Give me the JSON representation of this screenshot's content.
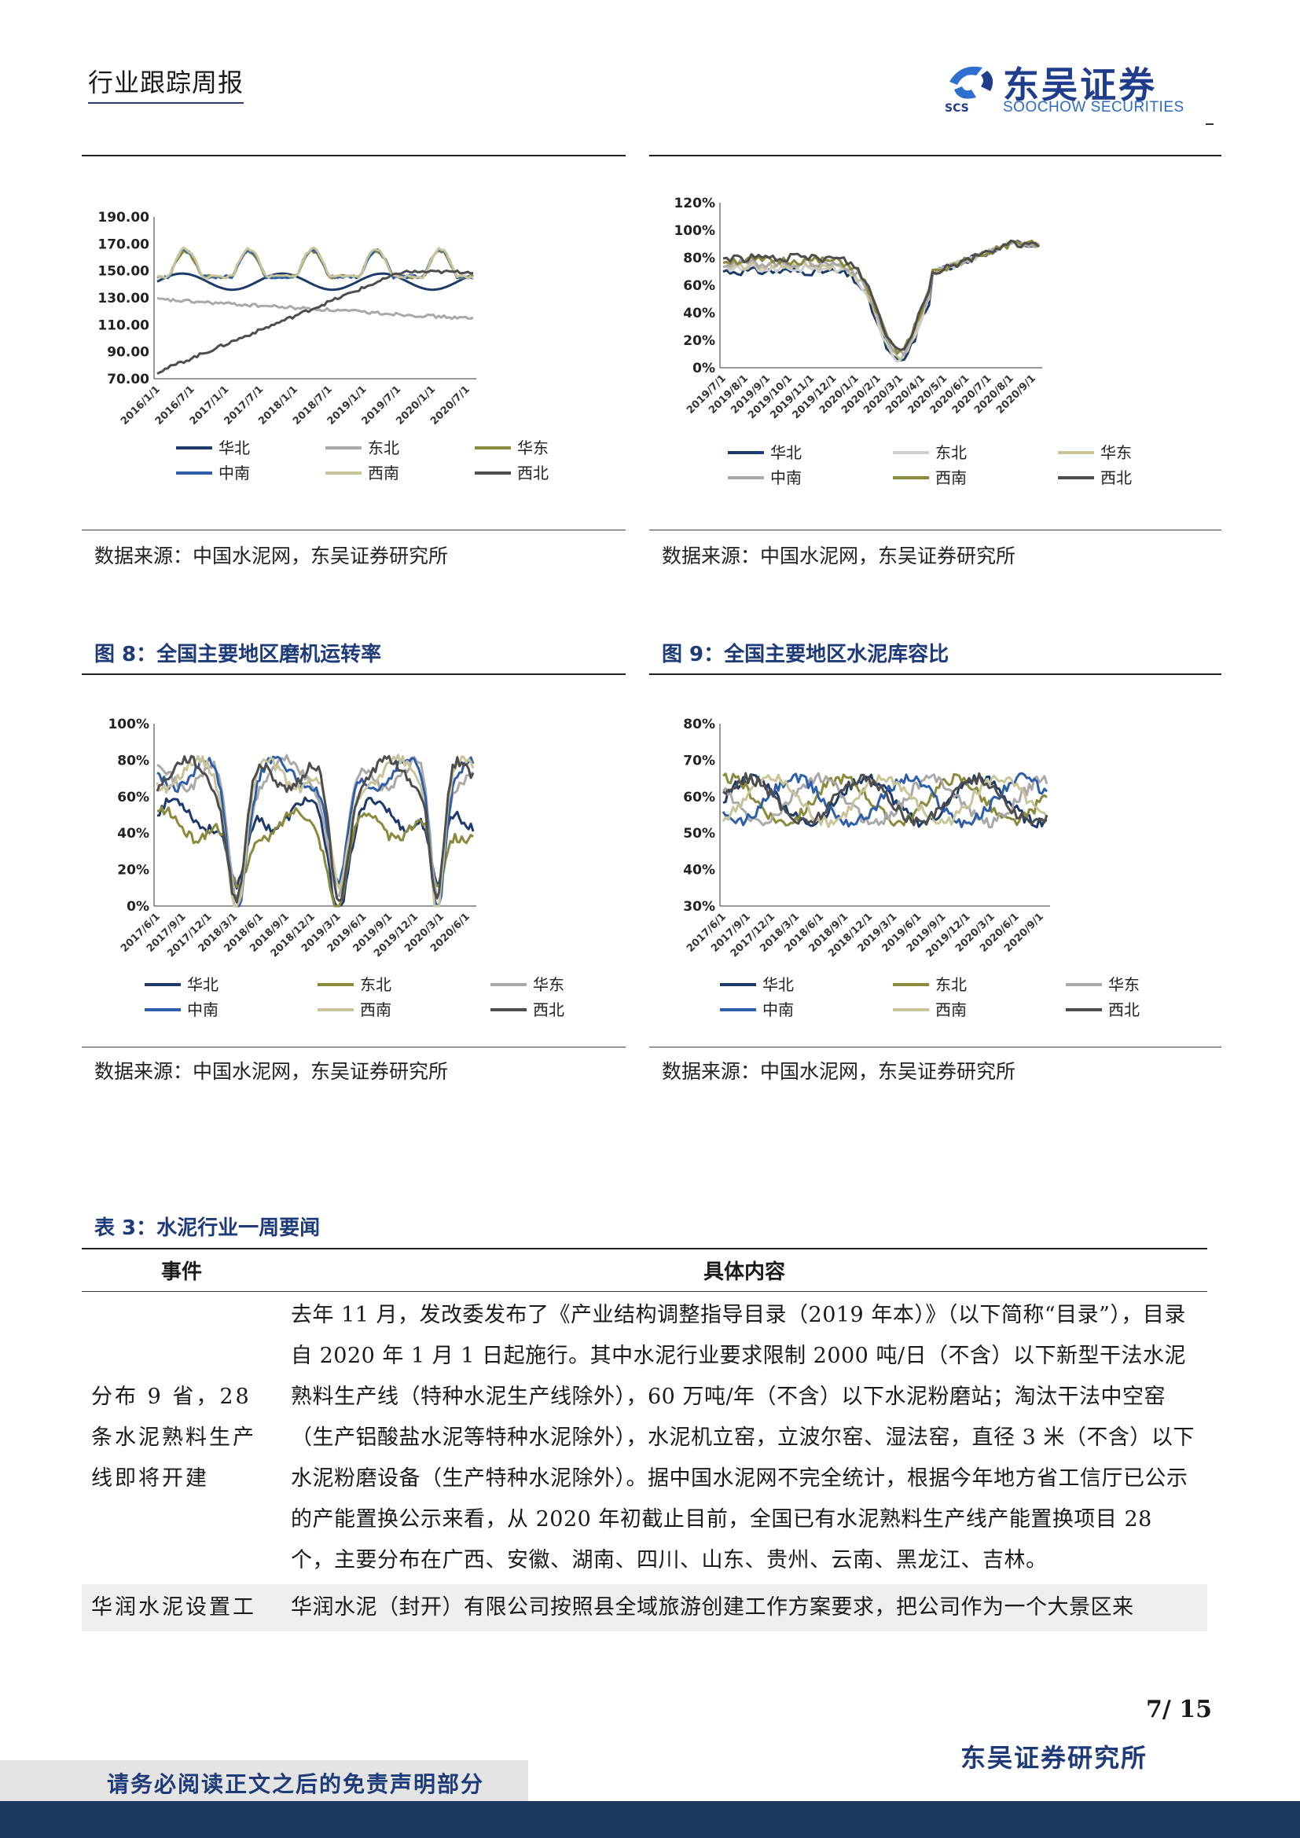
{
  "header": {
    "report_type": "行业跟踪周报",
    "brand_cn": "东吴证券",
    "brand_en": "SOOCHOW SECURITIES",
    "brand_mark": "SCS"
  },
  "charts_top": {
    "left": {
      "source": "数据来源：中国水泥网，东吴证券研究所",
      "y_ticks": [
        "190.00",
        "170.00",
        "150.00",
        "130.00",
        "110.00",
        "90.00",
        "70.00"
      ],
      "x_ticks": [
        "2016/1/1",
        "2016/7/1",
        "2017/1/1",
        "2017/7/1",
        "2018/1/1",
        "2018/7/1",
        "2019/1/1",
        "2019/7/1",
        "2020/1/1",
        "2020/7/1"
      ],
      "legend": [
        "华北",
        "东北",
        "华东",
        "中南",
        "西南",
        "西北"
      ]
    },
    "right": {
      "source": "数据来源：中国水泥网，东吴证券研究所",
      "y_ticks": [
        "120%",
        "100%",
        "80%",
        "60%",
        "40%",
        "20%",
        "0%"
      ],
      "x_ticks": [
        "2019/7/1",
        "2019/8/1",
        "2019/9/1",
        "2019/10/1",
        "2019/11/1",
        "2019/12/1",
        "2020/1/1",
        "2020/2/1",
        "2020/3/1",
        "2020/4/1",
        "2020/5/1",
        "2020/6/1",
        "2020/7/1",
        "2020/8/1",
        "2020/9/1"
      ],
      "legend": [
        "华北",
        "东北",
        "华东",
        "中南",
        "西南",
        "西北"
      ]
    }
  },
  "fig8": {
    "title": "图 8：全国主要地区磨机运转率",
    "source": "数据来源：中国水泥网，东吴证券研究所",
    "y_ticks": [
      "100%",
      "80%",
      "60%",
      "40%",
      "20%",
      "0%"
    ],
    "x_ticks": [
      "2017/6/1",
      "2017/9/1",
      "2017/12/1",
      "2018/3/1",
      "2018/6/1",
      "2018/9/1",
      "2018/12/1",
      "2019/3/1",
      "2019/6/1",
      "2019/9/1",
      "2019/12/1",
      "2020/3/1",
      "2020/6/1"
    ],
    "legend": [
      "华北",
      "东北",
      "华东",
      "中南",
      "西南",
      "西北"
    ]
  },
  "fig9": {
    "title": "图 9：全国主要地区水泥库容比",
    "source": "数据来源：中国水泥网，东吴证券研究所",
    "y_ticks": [
      "80%",
      "70%",
      "60%",
      "50%",
      "40%",
      "30%"
    ],
    "x_ticks": [
      "2017/6/1",
      "2017/9/1",
      "2017/12/1",
      "2018/3/1",
      "2018/6/1",
      "2018/9/1",
      "2018/12/1",
      "2019/3/1",
      "2019/6/1",
      "2019/9/1",
      "2019/12/1",
      "2020/3/1",
      "2020/6/1",
      "2020/9/1"
    ],
    "legend": [
      "华北",
      "东北",
      "华东",
      "中南",
      "西南",
      "西北"
    ]
  },
  "series_colors": {
    "华北": "#1d3a6b",
    "东北": "#a9a9a9",
    "华东": "#8a8a3c",
    "中南": "#2e5ea8",
    "西南": "#c9c59a",
    "西北": "#4d4d4d",
    "fig8_华北": "#1d3a6b",
    "fig8_东北": "#8a8a3c",
    "fig8_华东": "#a9a9a9",
    "fig8_中南": "#2e5ea8",
    "fig8_西南": "#c9c59a",
    "fig8_西北": "#4d4d4d"
  },
  "table": {
    "title": "表 3：水泥行业一周要闻",
    "col_event": "事件",
    "col_content": "具体内容",
    "rows": [
      {
        "event": "分布 9 省，28 条水泥熟料生产线即将开建",
        "content": "去年 11 月，发改委发布了《产业结构调整指导目录（2019 年本）》（以下简称“目录”），目录自 2020 年 1 月 1 日起施行。其中水泥行业要求限制 2000 吨/日（不含）以下新型干法水泥熟料生产线（特种水泥生产线除外），60 万吨/年（不含）以下水泥粉磨站；淘汰干法中空窑（生产铝酸盐水泥等特种水泥除外），水泥机立窑，立波尔窑、湿法窑，直径 3 米（不含）以下水泥粉磨设备（生产特种水泥除外）。据中国水泥网不完全统计，根据今年地方省工信厅已公示的产能置换公示来看，从 2020 年初截止目前，全国已有水泥熟料生产线产能置换项目 28 个，主要分布在广西、安徽、湖南、四川、山东、贵州、云南、黑龙江、吉林。"
      },
      {
        "event": "华润水泥设置工",
        "content": "华润水泥（封开）有限公司按照县全域旅游创建工作方案要求，把公司作为一个大景区来"
      }
    ]
  },
  "footer": {
    "page": "7/ 15",
    "org": "东吴证券研究所",
    "disclaimer": "请务必阅读正文之后的免责声明部分"
  }
}
